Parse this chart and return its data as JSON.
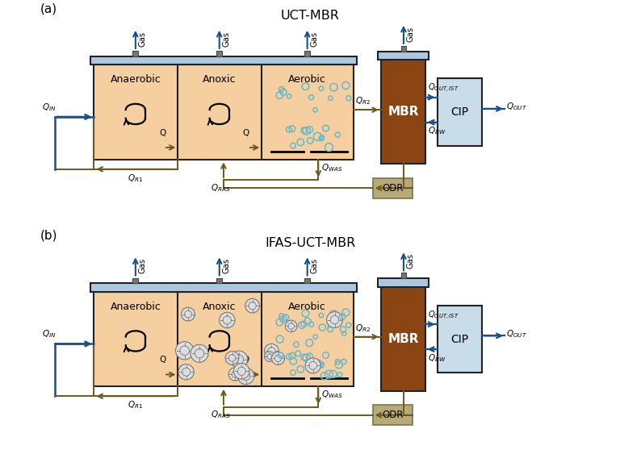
{
  "title_a": "UCT-MBR",
  "title_b": "IFAS-UCT-MBR",
  "label_a": "(a)",
  "label_b": "(b)",
  "tank_fill_color": "#f5cfa0",
  "tank_edge_color": "#222222",
  "tank_lid_color": "#adc8de",
  "mbr_fill_color": "#8b4513",
  "mbr_lid_color": "#adc8de",
  "cip_fill_color": "#c8dcea",
  "odr_fill_color": "#b8aa78",
  "flow_color_dark": "#6b5a1e",
  "flow_color_blue": "#1a4f8a",
  "bubble_color": "#6ab8c8",
  "carrier_edge_color": "#777777",
  "carrier_fill_color": "#cccccc",
  "bg_color": "#ffffff",
  "font_size_label": 10,
  "font_size_tank": 9,
  "font_size_flow": 7.5
}
